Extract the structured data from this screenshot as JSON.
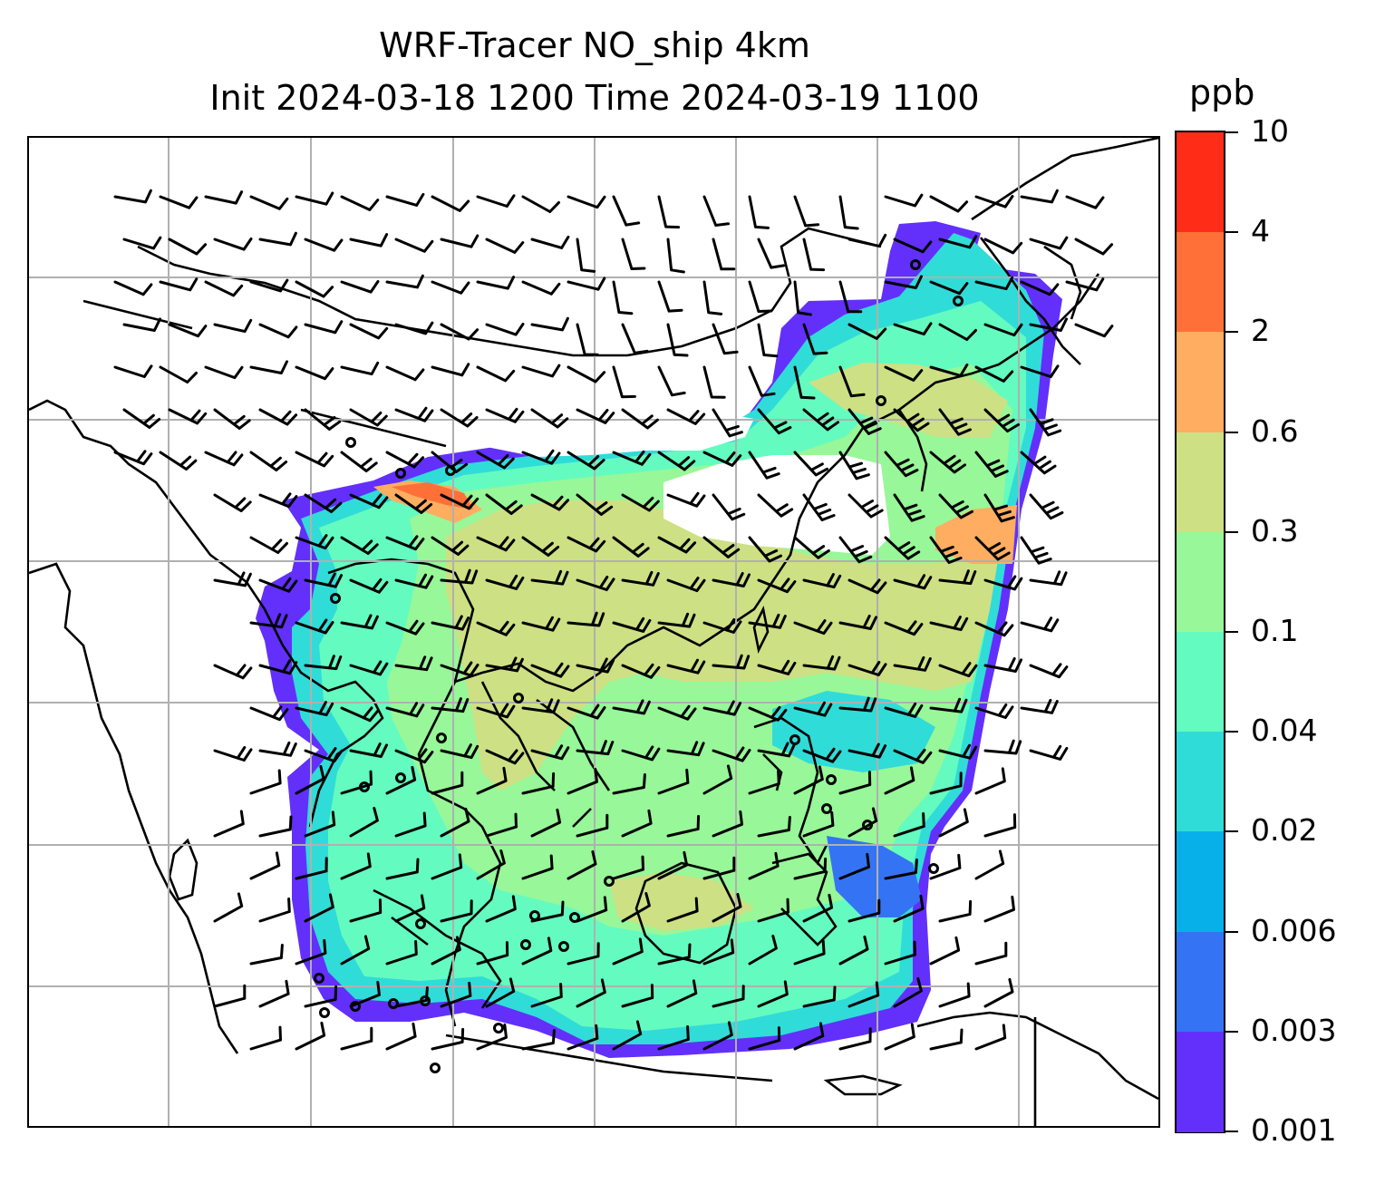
{
  "title": {
    "line1": "WRF-Tracer NO_ship 4km",
    "line2": "Init 2024-03-18 1200 Time 2024-03-19 1100"
  },
  "colorbar": {
    "units": "ppb",
    "ticks": [
      "10",
      "4",
      "2",
      "0.6",
      "0.3",
      "0.1",
      "0.04",
      "0.02",
      "0.006",
      "0.003",
      "0.001"
    ],
    "colors": [
      "#ff2d18",
      "#ff7038",
      "#ffad60",
      "#cde084",
      "#98f798",
      "#64fbc0",
      "#30dcd8",
      "#08b0ea",
      "#3474f4",
      "#6230fa"
    ]
  },
  "map": {
    "gridlines": "on",
    "colormap": "rainbow"
  }
}
